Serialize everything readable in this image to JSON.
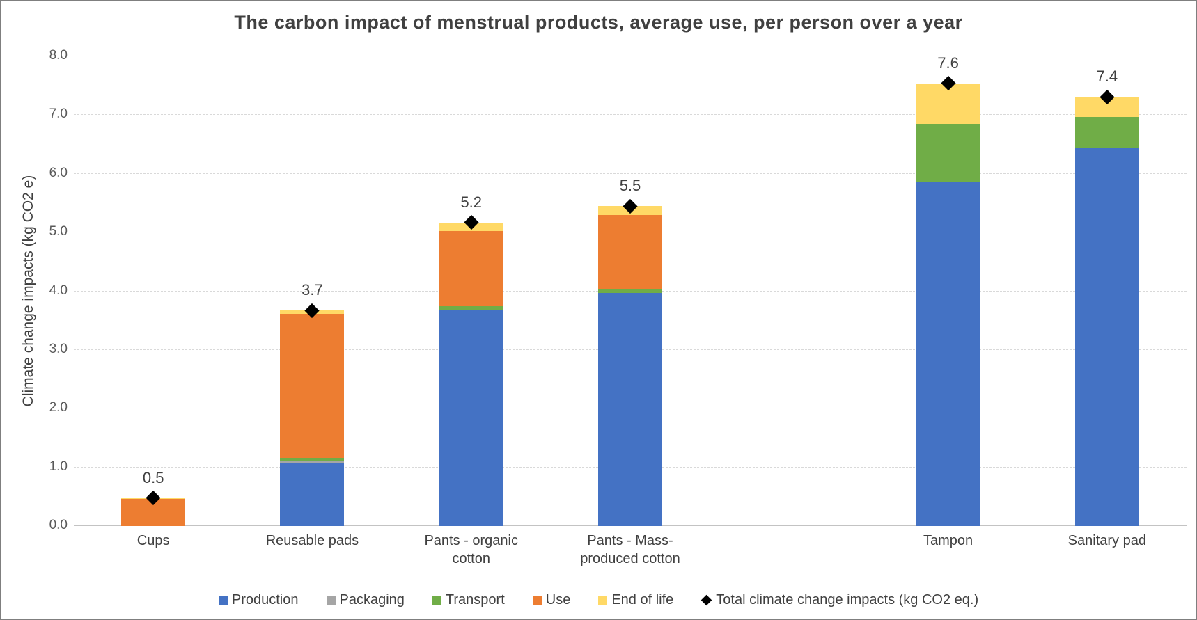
{
  "chart_data": {
    "type": "bar",
    "subtype": "stacked-column",
    "title": "The carbon impact of menstrual products, average use, per person over a year",
    "ylabel": "Climate change impacts (kg CO2 e)",
    "xlabel": "",
    "ylim": [
      0,
      8
    ],
    "ytick_step": 1.0,
    "ytick_labels": [
      "0.0",
      "1.0",
      "2.0",
      "3.0",
      "4.0",
      "5.0",
      "6.0",
      "7.0",
      "8.0"
    ],
    "grid": "horizontal-dashed-light-gray",
    "legend_position": "bottom",
    "plot_note": "seven category slots; slot 5 is an empty spacer between reusable and disposable products",
    "categories": [
      "Cups",
      "Reusable pads",
      "Pants - organic cotton",
      "Pants - Mass-produced cotton",
      "",
      "Tampon",
      "Sanitary pad"
    ],
    "series": [
      {
        "name": "Production",
        "color": "#4472C4",
        "values": [
          0,
          1.08,
          3.69,
          3.97,
          0,
          5.86,
          6.45
        ]
      },
      {
        "name": "Packaging",
        "color": "#A5A5A5",
        "values": [
          0,
          0.04,
          0,
          0,
          0,
          0,
          0
        ]
      },
      {
        "name": "Transport",
        "color": "#70AD47",
        "values": [
          0,
          0.04,
          0.06,
          0.06,
          0,
          0.99,
          0.52
        ]
      },
      {
        "name": "Use",
        "color": "#ED7D31",
        "values": [
          0.46,
          2.46,
          1.28,
          1.27,
          0,
          0,
          0
        ]
      },
      {
        "name": "End of life",
        "color": "#FFD966",
        "values": [
          0.02,
          0.05,
          0.14,
          0.15,
          0,
          0.69,
          0.34
        ]
      }
    ],
    "totals": {
      "name": "Total climate change impacts (kg CO2 eq.)",
      "marker": "black-diamond",
      "color": "#000000",
      "values": [
        0.5,
        3.7,
        5.2,
        5.5,
        null,
        7.6,
        7.4
      ],
      "labels": [
        "0.5",
        "3.7",
        "5.2",
        "5.5",
        "",
        "7.6",
        "7.4"
      ]
    },
    "colors": {
      "title_text": "#404040",
      "axis_text": "#595959",
      "gridline": "#D9D9D9",
      "baseline": "#C3C3C3",
      "marker": "#000000"
    }
  }
}
